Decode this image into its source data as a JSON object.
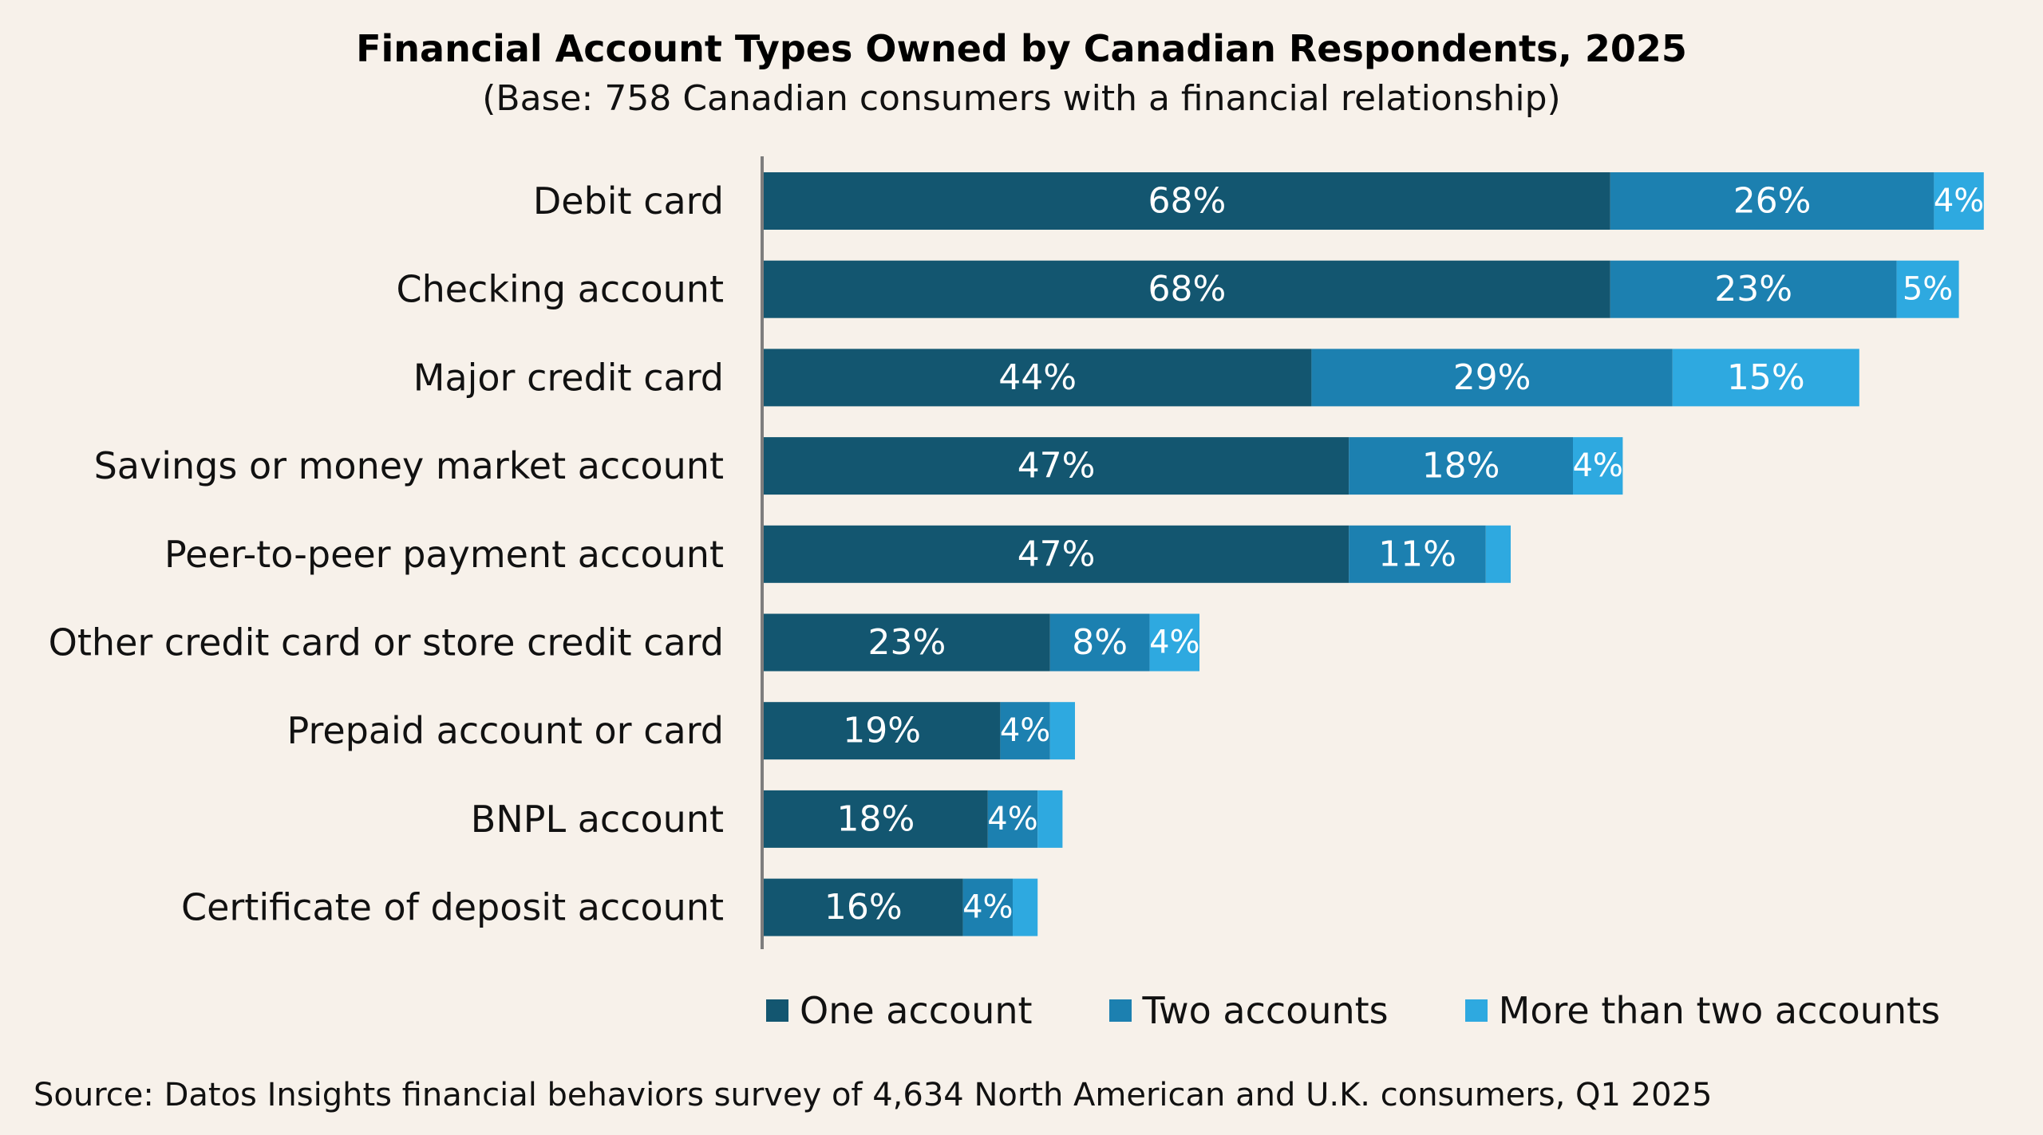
{
  "colors": {
    "background": "#f7f1ea",
    "one_account": "#135670",
    "two_accounts": "#1c80b0",
    "more_than_two": "#2ea9e0",
    "axis": "#7d7d7d"
  },
  "chart_data": {
    "type": "bar",
    "orientation": "horizontal",
    "stacked": true,
    "title": "Financial Account Types Owned by Canadian Respondents, 2025",
    "subtitle": "(Base: 758 Canadian consumers with a financial relationship)",
    "categories": [
      "Debit card",
      "Checking account",
      "Major credit card",
      "Savings or money market account",
      "Peer-to-peer payment account",
      "Other credit card or store credit card",
      "Prepaid account or card",
      "BNPL account",
      "Certificate of deposit account"
    ],
    "series": [
      {
        "name": "One account",
        "values": [
          68,
          68,
          44,
          47,
          47,
          23,
          19,
          18,
          16
        ],
        "labels": [
          "68%",
          "68%",
          "44%",
          "47%",
          "47%",
          "23%",
          "19%",
          "18%",
          "16%"
        ]
      },
      {
        "name": "Two accounts",
        "values": [
          26,
          23,
          29,
          18,
          11,
          8,
          4,
          4,
          4
        ],
        "labels": [
          "26%",
          "23%",
          "29%",
          "18%",
          "11%",
          "8%",
          "4%",
          "4%",
          "4%"
        ]
      },
      {
        "name": "More than two accounts",
        "values": [
          4,
          5,
          15,
          4,
          2,
          4,
          2,
          2,
          2
        ],
        "labels": [
          "4%",
          "5%",
          "15%",
          "4%",
          "",
          "4%",
          "",
          "",
          ""
        ]
      }
    ],
    "xlim": [
      0,
      100
    ],
    "legend_position": "bottom",
    "grid": false,
    "source": "Source: Datos Insights financial behaviors survey of 4,634 North American and U.K. consumers, Q1 2025"
  }
}
